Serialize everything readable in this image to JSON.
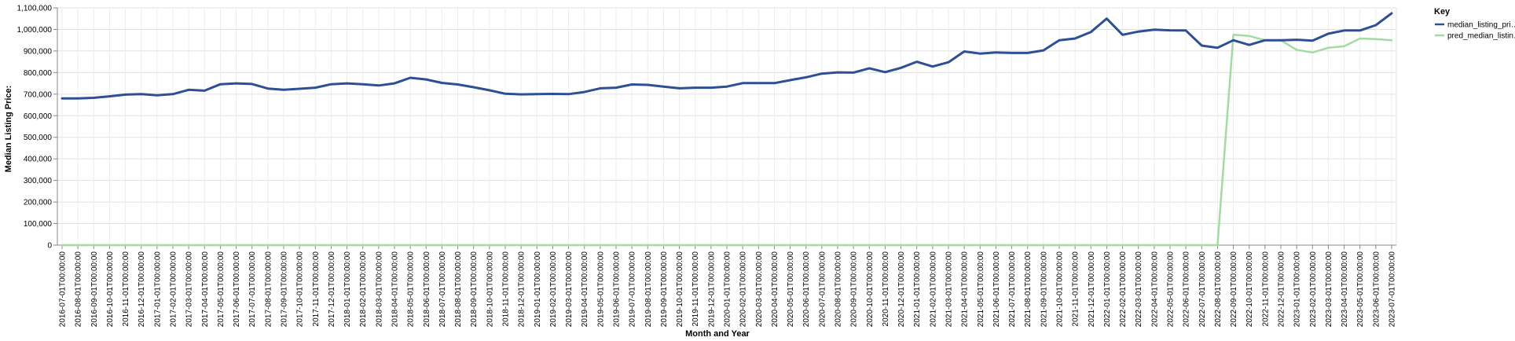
{
  "chart_data": {
    "type": "line",
    "xlabel": "Month and Year",
    "ylabel": "Median Listing Price:",
    "ylim": [
      0,
      1100000
    ],
    "yticks": [
      0,
      100000,
      200000,
      300000,
      400000,
      500000,
      600000,
      700000,
      800000,
      900000,
      1000000,
      1100000
    ],
    "ytick_labels": [
      "0",
      "100,000",
      "200,000",
      "300,000",
      "400,000",
      "500,000",
      "600,000",
      "700,000",
      "800,000",
      "900,000",
      "1,000,000",
      "1,100,000"
    ],
    "grid": true,
    "legend": {
      "title": "Key",
      "placement": "top-right"
    },
    "categories": [
      "2016-07-01T00:00:00",
      "2016-08-01T00:00:00",
      "2016-09-01T00:00:00",
      "2016-10-01T00:00:00",
      "2016-11-01T00:00:00",
      "2016-12-01T00:00:00",
      "2017-01-01T00:00:00",
      "2017-02-01T00:00:00",
      "2017-03-01T00:00:00",
      "2017-04-01T00:00:00",
      "2017-05-01T00:00:00",
      "2017-06-01T00:00:00",
      "2017-07-01T00:00:00",
      "2017-08-01T00:00:00",
      "2017-09-01T00:00:00",
      "2017-10-01T00:00:00",
      "2017-11-01T00:00:00",
      "2017-12-01T00:00:00",
      "2018-01-01T00:00:00",
      "2018-02-01T00:00:00",
      "2018-03-01T00:00:00",
      "2018-04-01T00:00:00",
      "2018-05-01T00:00:00",
      "2018-06-01T00:00:00",
      "2018-07-01T00:00:00",
      "2018-08-01T00:00:00",
      "2018-09-01T00:00:00",
      "2018-10-01T00:00:00",
      "2018-11-01T00:00:00",
      "2018-12-01T00:00:00",
      "2019-01-01T00:00:00",
      "2019-02-01T00:00:00",
      "2019-03-01T00:00:00",
      "2019-04-01T00:00:00",
      "2019-05-01T00:00:00",
      "2019-06-01T00:00:00",
      "2019-07-01T00:00:00",
      "2019-08-01T00:00:00",
      "2019-09-01T00:00:00",
      "2019-10-01T00:00:00",
      "2019-11-01T00:00:00",
      "2019-12-01T00:00:00",
      "2020-01-01T00:00:00",
      "2020-02-01T00:00:00",
      "2020-03-01T00:00:00",
      "2020-04-01T00:00:00",
      "2020-05-01T00:00:00",
      "2020-06-01T00:00:00",
      "2020-07-01T00:00:00",
      "2020-08-01T00:00:00",
      "2020-09-01T00:00:00",
      "2020-10-01T00:00:00",
      "2020-11-01T00:00:00",
      "2020-12-01T00:00:00",
      "2021-01-01T00:00:00",
      "2021-02-01T00:00:00",
      "2021-03-01T00:00:00",
      "2021-04-01T00:00:00",
      "2021-05-01T00:00:00",
      "2021-06-01T00:00:00",
      "2021-07-01T00:00:00",
      "2021-08-01T00:00:00",
      "2021-09-01T00:00:00",
      "2021-10-01T00:00:00",
      "2021-11-01T00:00:00",
      "2021-12-01T00:00:00",
      "2022-01-01T00:00:00",
      "2022-02-01T00:00:00",
      "2022-03-01T00:00:00",
      "2022-04-01T00:00:00",
      "2022-05-01T00:00:00",
      "2022-06-01T00:00:00",
      "2022-07-01T00:00:00",
      "2022-08-01T00:00:00",
      "2022-09-01T00:00:00",
      "2022-10-01T00:00:00",
      "2022-11-01T00:00:00",
      "2022-12-01T00:00:00",
      "2023-01-01T00:00:00",
      "2023-02-01T00:00:00",
      "2023-03-01T00:00:00",
      "2023-04-01T00:00:00",
      "2023-05-01T00:00:00",
      "2023-06-01T00:00:00",
      "2023-07-01T00:00:00"
    ],
    "series": [
      {
        "name": "median_listing_pri…",
        "color": "#2e4f94",
        "values": [
          680000,
          680000,
          683000,
          690000,
          698000,
          700000,
          695000,
          700000,
          720000,
          716000,
          746000,
          750000,
          747000,
          726000,
          720000,
          725000,
          730000,
          746000,
          750000,
          746000,
          740000,
          750000,
          776000,
          768000,
          752000,
          745000,
          732000,
          718000,
          702000,
          699000,
          700000,
          701000,
          700000,
          710000,
          727000,
          730000,
          745000,
          743000,
          735000,
          727000,
          730000,
          730000,
          735000,
          751000,
          751000,
          751000,
          765000,
          778000,
          795000,
          801000,
          800000,
          820000,
          802000,
          822000,
          850000,
          828000,
          848000,
          898000,
          888000,
          893000,
          891000,
          891000,
          903000,
          950000,
          958000,
          988000,
          1050000,
          975000,
          990000,
          999000,
          996000,
          995000,
          925000,
          915000,
          950000,
          928000,
          950000,
          950000,
          952000,
          948000,
          980000,
          995000,
          995000,
          1020000,
          1075000
        ]
      },
      {
        "name": "pred_median_listin…",
        "color": "#a3dba2",
        "values": [
          0,
          0,
          0,
          0,
          0,
          0,
          0,
          0,
          0,
          0,
          0,
          0,
          0,
          0,
          0,
          0,
          0,
          0,
          0,
          0,
          0,
          0,
          0,
          0,
          0,
          0,
          0,
          0,
          0,
          0,
          0,
          0,
          0,
          0,
          0,
          0,
          0,
          0,
          0,
          0,
          0,
          0,
          0,
          0,
          0,
          0,
          0,
          0,
          0,
          0,
          0,
          0,
          0,
          0,
          0,
          0,
          0,
          0,
          0,
          0,
          0,
          0,
          0,
          0,
          0,
          0,
          0,
          0,
          0,
          0,
          0,
          0,
          0,
          0,
          975000,
          970000,
          950000,
          950000,
          905000,
          893000,
          915000,
          922000,
          958000,
          955000,
          950000
        ]
      }
    ]
  }
}
